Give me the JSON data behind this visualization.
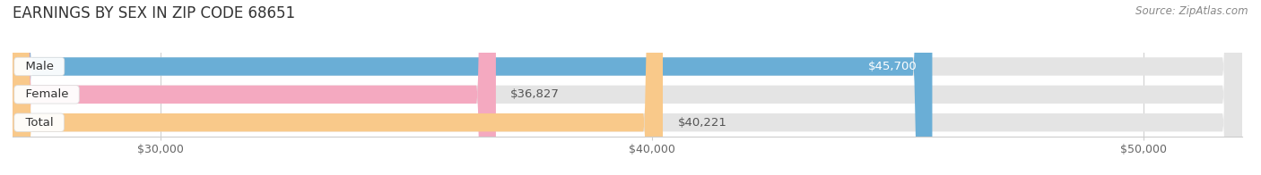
{
  "title": "EARNINGS BY SEX IN ZIP CODE 68651",
  "categories": [
    "Male",
    "Female",
    "Total"
  ],
  "values": [
    45700,
    36827,
    40221
  ],
  "bar_colors": [
    "#6aaed6",
    "#f4a9c0",
    "#f9c98a"
  ],
  "bar_bg_color": "#e4e4e4",
  "label_colors": [
    "#ffffff",
    "#777777",
    "#777777"
  ],
  "value_labels": [
    "$45,700",
    "$36,827",
    "$40,221"
  ],
  "xlim_min": 27000,
  "xlim_max": 52000,
  "xticks": [
    30000,
    40000,
    50000
  ],
  "xtick_labels": [
    "$30,000",
    "$40,000",
    "$50,000"
  ],
  "source_text": "Source: ZipAtlas.com",
  "title_fontsize": 12,
  "tick_fontsize": 9,
  "cat_label_fontsize": 9.5,
  "value_fontsize": 9.5,
  "source_fontsize": 8.5,
  "fig_bg_color": "#ffffff"
}
